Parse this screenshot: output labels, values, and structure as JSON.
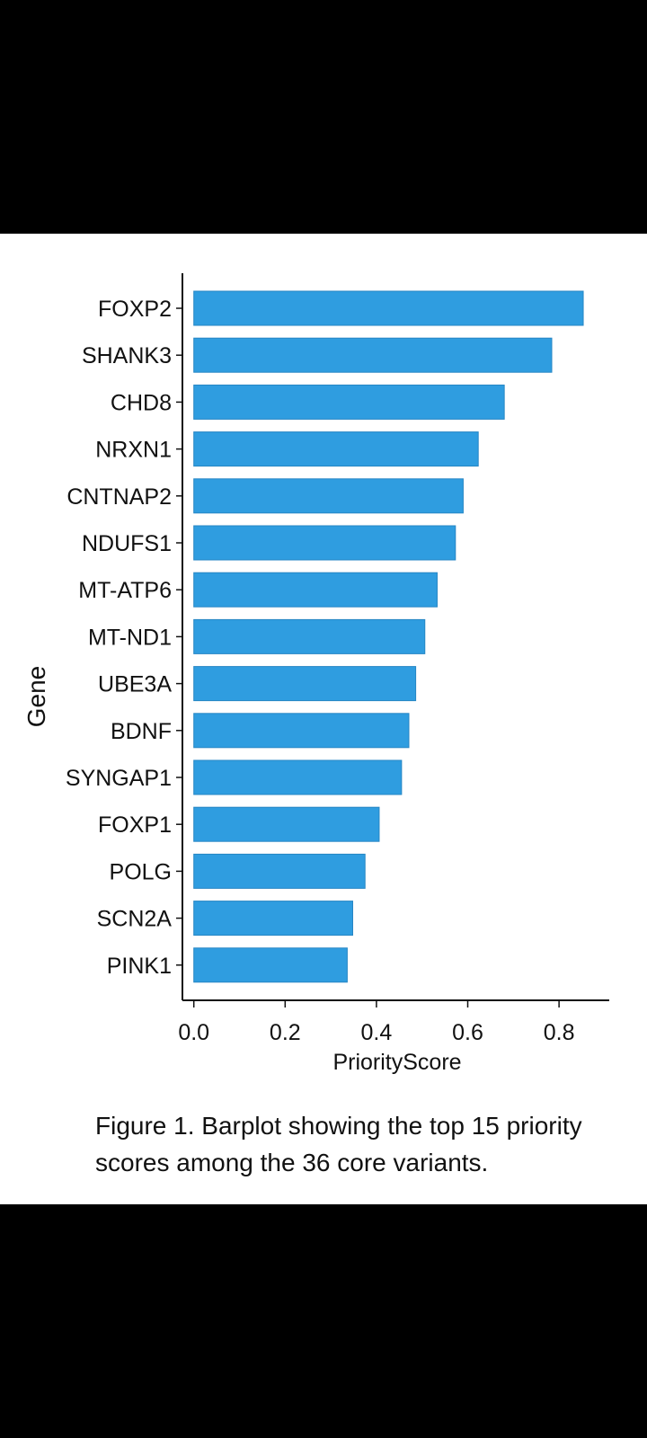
{
  "theme": {
    "bar_color": "#2f9de0",
    "axis_color": "#111111",
    "background": "#ffffff",
    "letterbox": "#000000"
  },
  "chart_data": {
    "type": "bar",
    "orientation": "horizontal",
    "categories": [
      "FOXP2",
      "SHANK3",
      "CHD8",
      "NRXN1",
      "CNTNAP2",
      "NDUFS1",
      "MT-ATP6",
      "MT-ND1",
      "UBE3A",
      "BDNF",
      "SYNGAP1",
      "FOXP1",
      "POLG",
      "SCN2A",
      "PINK1"
    ],
    "values": [
      0.853,
      0.784,
      0.68,
      0.623,
      0.59,
      0.573,
      0.533,
      0.506,
      0.486,
      0.471,
      0.455,
      0.406,
      0.375,
      0.348,
      0.336
    ],
    "xlabel": "PriorityScore",
    "ylabel": "Gene",
    "xticks": [
      0.0,
      0.2,
      0.4,
      0.6,
      0.8
    ],
    "xtick_labels": [
      "0.0",
      "0.2",
      "0.4",
      "0.6",
      "0.8"
    ],
    "xlim": [
      -0.025,
      0.91
    ],
    "grid": false,
    "legend": false
  },
  "caption": "Figure 1. Barplot showing the top 15 priority scores among the 36 core variants."
}
